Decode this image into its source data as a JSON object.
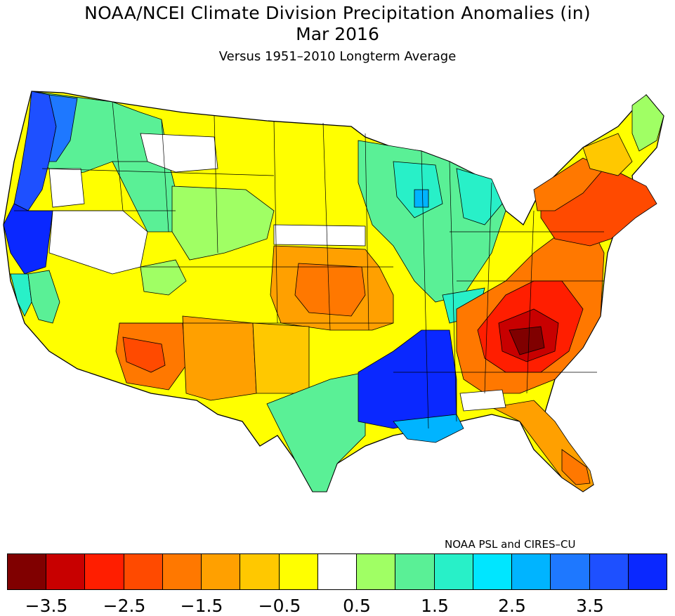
{
  "title": {
    "line1": "NOAA/NCEI Climate Division Precipitation Anomalies (in)",
    "line2": "Mar 2016",
    "line3": "Versus 1951–2010 Longterm Average"
  },
  "credit": "NOAA PSL and CIRES–CU",
  "legend": {
    "colors": [
      "#800000",
      "#c80000",
      "#ff1e00",
      "#ff4a00",
      "#ff7800",
      "#ffa000",
      "#ffc800",
      "#ffff00",
      "#ffffff",
      "#a0ff64",
      "#5af096",
      "#28f0c8",
      "#00e6ff",
      "#00b4ff",
      "#1e78ff",
      "#1e50ff",
      "#0a28ff"
    ],
    "tick_labels": [
      "−3.5",
      "−2.5",
      "−1.5",
      "−0.5",
      "0.5",
      "1.5",
      "2.5",
      "3.5"
    ]
  },
  "colors": {
    "border": "#000000"
  }
}
